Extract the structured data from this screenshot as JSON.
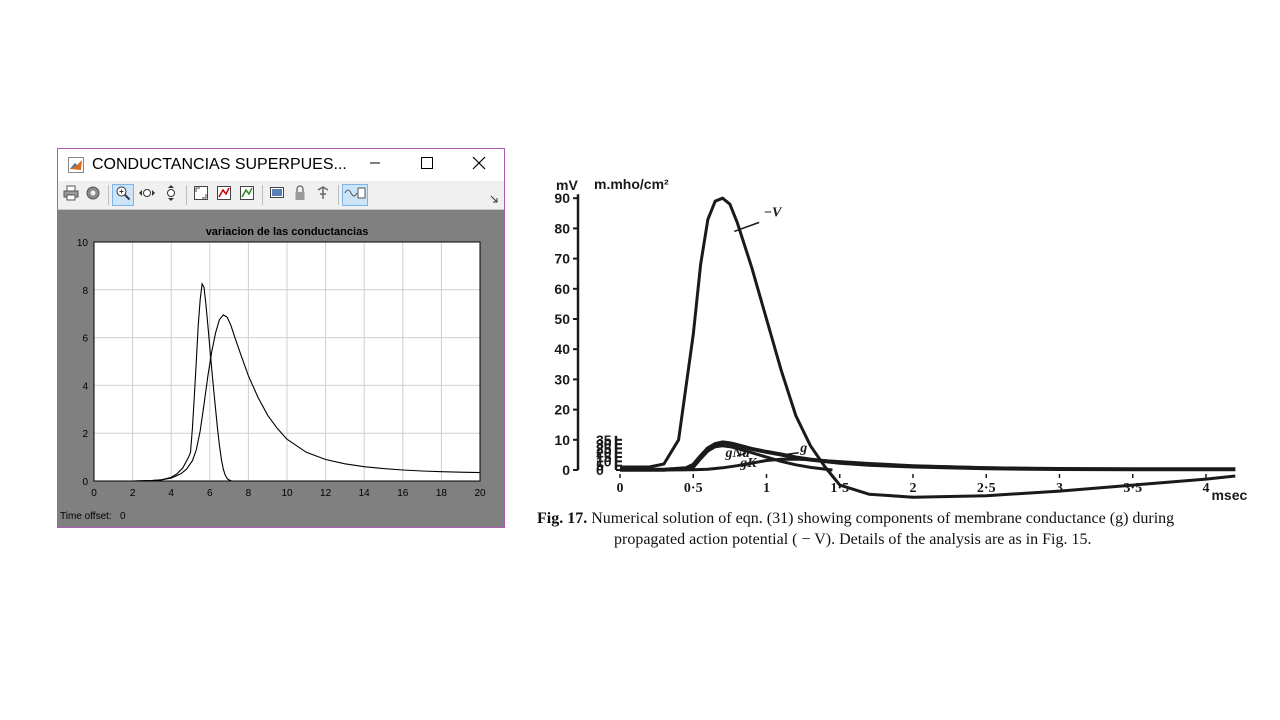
{
  "window": {
    "title": "CONDUCTANCIAS  SUPERPUES...",
    "controls": [
      "minimize-icon",
      "maximize-icon",
      "close-icon"
    ],
    "toolbar_icons": [
      "print-icon",
      "gear-icon",
      "zoom-in-icon",
      "zoom-x-icon",
      "zoom-y-icon",
      "autoscale-icon",
      "save-axes-icon",
      "restore-axes-icon",
      "floating-scope-icon",
      "lock-icon",
      "signal-select-icon",
      "legend-icon"
    ],
    "active_tool": "zoom-in-icon",
    "time_offset_label": "Time offset:",
    "time_offset_value": "0"
  },
  "chart_data": [
    {
      "type": "line",
      "title": "variacion de las conductancias",
      "xlabel": "",
      "ylabel": "",
      "xlim": [
        0,
        20
      ],
      "ylim": [
        0,
        10
      ],
      "xticks": [
        0,
        2,
        4,
        6,
        8,
        10,
        12,
        14,
        16,
        18,
        20
      ],
      "yticks": [
        0,
        2,
        4,
        6,
        8,
        10
      ],
      "grid": true,
      "background": "#808080",
      "plot_area": "#ffffff",
      "series": [
        {
          "x": [
            0,
            2,
            3,
            3.5,
            4,
            4.3,
            4.6,
            4.9,
            5.0,
            5.1,
            5.2,
            5.3,
            5.4,
            5.5,
            5.6,
            5.7,
            5.8,
            5.9,
            6.0,
            6.1,
            6.2,
            6.3,
            6.4,
            6.5,
            6.6,
            6.7,
            6.8,
            6.9,
            7.0,
            7.1,
            7.2,
            20
          ],
          "y": [
            0,
            0,
            0.02,
            0.05,
            0.15,
            0.3,
            0.55,
            1.0,
            1.2,
            2.2,
            3.6,
            5.0,
            6.5,
            7.6,
            8.25,
            8.1,
            7.4,
            6.5,
            5.6,
            4.7,
            3.8,
            3.0,
            2.2,
            1.5,
            0.9,
            0.5,
            0.25,
            0.1,
            0.04,
            0.01,
            0,
            0
          ]
        },
        {
          "x": [
            0,
            2,
            3,
            3.5,
            4,
            4.5,
            4.8,
            5.1,
            5.3,
            5.5,
            5.7,
            5.9,
            6.1,
            6.3,
            6.5,
            6.7,
            6.9,
            7.1,
            7.3,
            7.6,
            8.0,
            8.5,
            9,
            9.5,
            10,
            11,
            12,
            13,
            14,
            15,
            16,
            17,
            18,
            19,
            20
          ],
          "y": [
            0,
            0,
            0.02,
            0.05,
            0.12,
            0.3,
            0.5,
            0.85,
            1.3,
            2.1,
            3.2,
            4.4,
            5.4,
            6.2,
            6.75,
            6.95,
            6.85,
            6.5,
            6.0,
            5.3,
            4.4,
            3.5,
            2.75,
            2.2,
            1.75,
            1.2,
            0.9,
            0.72,
            0.6,
            0.52,
            0.46,
            0.42,
            0.39,
            0.37,
            0.35
          ]
        }
      ]
    },
    {
      "type": "line",
      "xlabel": "msec",
      "ylabel_left": "mV",
      "ylabel_right": "m.mho/cm²",
      "xlim": [
        0,
        4
      ],
      "xticks": [
        "0",
        "0·5",
        "1",
        "1·5",
        "2",
        "2·5",
        "3",
        "3·5",
        "4"
      ],
      "xtick_values": [
        0,
        0.5,
        1,
        1.5,
        2,
        2.5,
        3,
        3.5,
        4
      ],
      "ylim_left": [
        0,
        90
      ],
      "yticks_left": [
        0,
        10,
        20,
        30,
        40,
        50,
        60,
        70,
        80,
        90
      ],
      "ylim_right": [
        0,
        35
      ],
      "yticks_right": [
        0,
        5,
        10,
        15,
        20,
        25,
        30,
        35
      ],
      "series": [
        {
          "name": "−V",
          "axis": "mV",
          "x": [
            0,
            0.2,
            0.3,
            0.4,
            0.5,
            0.55,
            0.6,
            0.65,
            0.7,
            0.75,
            0.8,
            0.9,
            1.0,
            1.1,
            1.2,
            1.3,
            1.4,
            1.45,
            1.5,
            1.7,
            2.0,
            2.5,
            3.0,
            3.5,
            4.0,
            4.2
          ],
          "y": [
            1,
            1,
            2,
            10,
            45,
            68,
            83,
            89,
            90,
            88,
            82,
            67,
            50,
            33,
            18,
            8,
            1,
            -2,
            -5,
            -8,
            -9,
            -8.5,
            -7,
            -5,
            -3,
            -2
          ]
        },
        {
          "name": "g",
          "axis": "m.mho/cm²",
          "x": [
            0,
            0.3,
            0.45,
            0.5,
            0.55,
            0.6,
            0.65,
            0.7,
            0.75,
            0.8,
            0.9,
            1.0,
            1.1,
            1.2,
            1.3,
            1.5,
            1.7,
            2.0,
            2.5,
            3.0,
            3.5,
            4.0,
            4.2
          ],
          "y": [
            0.3,
            0.3,
            2,
            6,
            16,
            25,
            30,
            32,
            31,
            29,
            24.5,
            21,
            18,
            14.5,
            12,
            8.5,
            6,
            4,
            2,
            1.2,
            0.9,
            0.8,
            0.8
          ]
        },
        {
          "name": "gNa",
          "axis": "m.mho/cm²",
          "x": [
            0,
            0.45,
            0.5,
            0.55,
            0.6,
            0.65,
            0.7,
            0.75,
            0.8,
            0.9,
            1.0,
            1.1,
            1.2,
            1.3,
            1.4,
            1.45
          ],
          "y": [
            0,
            0.5,
            3,
            13,
            22,
            27,
            28,
            27,
            25,
            20,
            15,
            10,
            6,
            3,
            1,
            0
          ]
        },
        {
          "name": "gK",
          "axis": "m.mho/cm²",
          "x": [
            0,
            0.5,
            0.6,
            0.7,
            0.8,
            0.9,
            1.0,
            1.1,
            1.2,
            1.3,
            1.4,
            1.5,
            1.7,
            2.0,
            2.5,
            3.0,
            3.5,
            4.0,
            4.2
          ],
          "y": [
            0,
            0.3,
            0.8,
            2.5,
            5,
            8,
            11,
            12.5,
            12.6,
            11.8,
            10.8,
            9.7,
            7.5,
            5,
            2.5,
            1.3,
            0.9,
            0.8,
            0.8
          ]
        }
      ],
      "annotations": [
        "−V",
        "g",
        "gNa",
        "gK"
      ]
    }
  ],
  "caption": {
    "label": "Fig. 17.",
    "line1": "Numerical solution of eqn. (31) showing components of membrane conductance (g) during",
    "line2": "propagated action potential ( − V).  Details of the analysis are as in Fig. 15."
  }
}
